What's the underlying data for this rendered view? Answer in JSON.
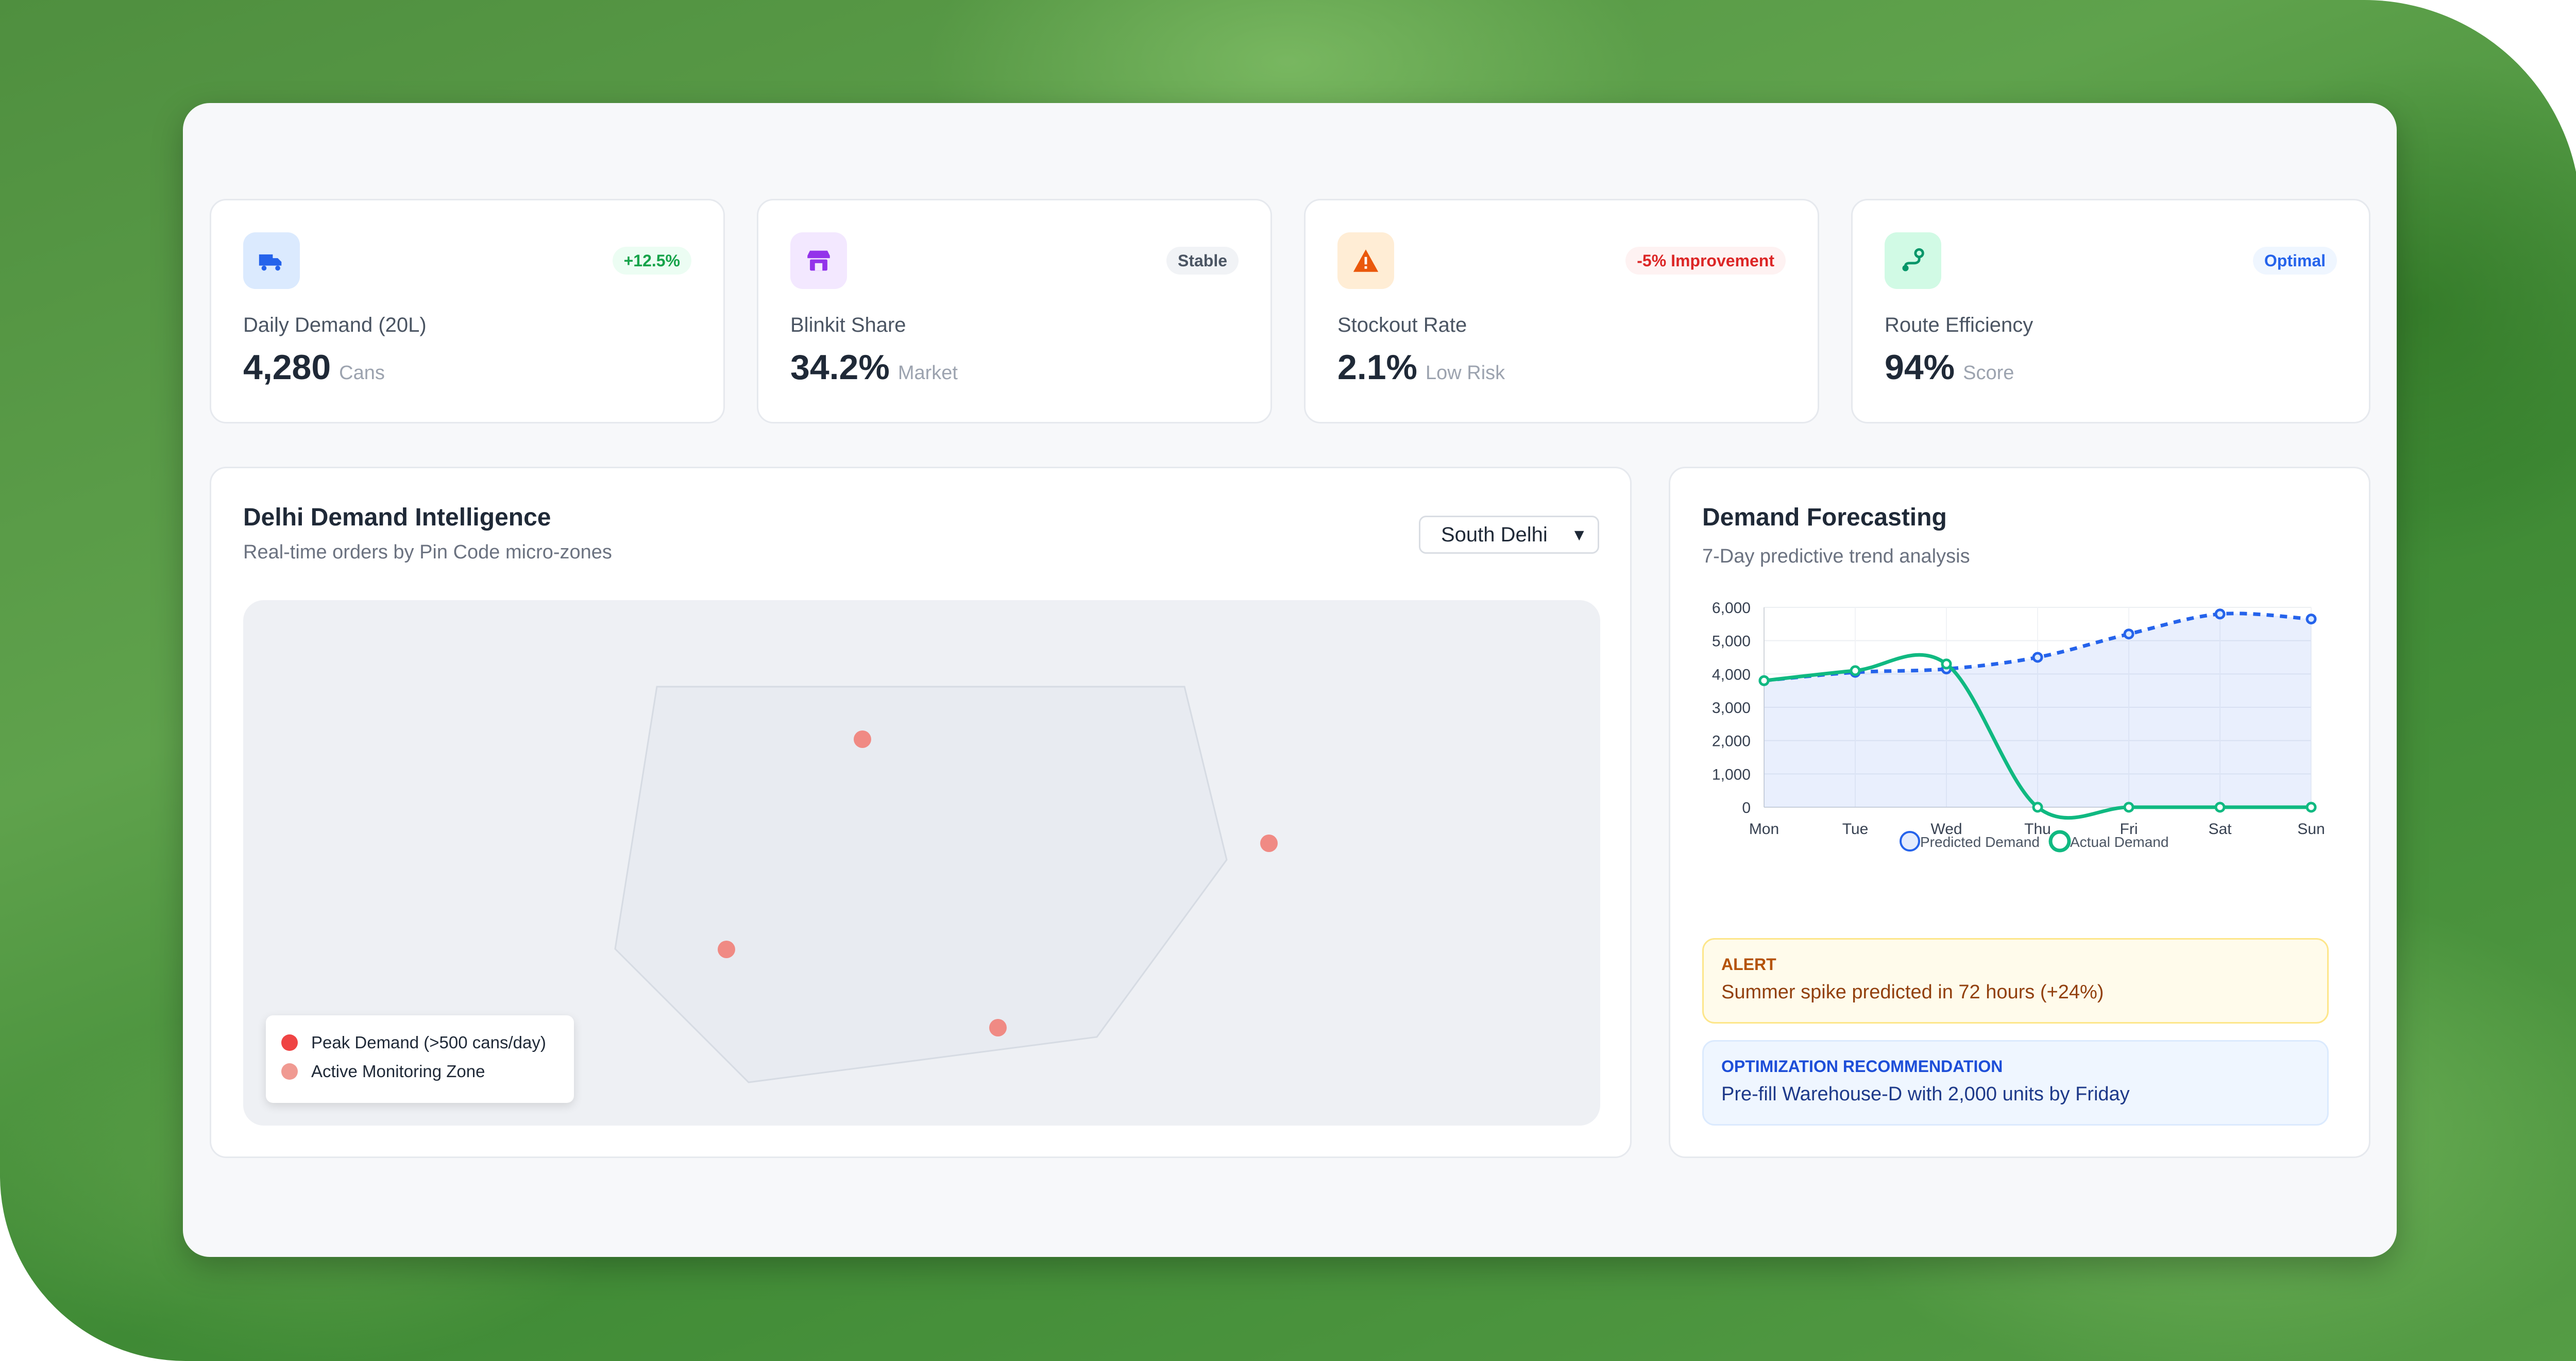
{
  "stats": [
    {
      "label": "Daily Demand (20L)",
      "value": "4,280",
      "unit": "Cans",
      "badge": "+12.5%",
      "icon": "truck-icon"
    },
    {
      "label": "Blinkit Share",
      "value": "34.2%",
      "unit": "Market",
      "badge": "Stable",
      "icon": "store-icon"
    },
    {
      "label": "Stockout Rate",
      "value": "2.1%",
      "unit": "Low Risk",
      "badge": "-5% Improvement",
      "icon": "warning-icon"
    },
    {
      "label": "Route Efficiency",
      "value": "94%",
      "unit": "Score",
      "badge": "Optimal",
      "icon": "route-icon"
    }
  ],
  "colors": {
    "success": "#16a34a",
    "danger": "#dc2626",
    "primary": "#2563eb",
    "purple": "#9333ea",
    "orange": "#ea580c",
    "actual_line": "#10b981",
    "predicted_line": "#2563eb"
  },
  "map": {
    "title": "Delhi Demand Intelligence",
    "subtitle": "Real-time orders by Pin Code micro-zones",
    "zone_select": "South Delhi",
    "legend": [
      {
        "label": "Peak Demand (>500 cans/day)",
        "color": "#ef4444"
      },
      {
        "label": "Active Monitoring Zone",
        "color": "#f09a92"
      }
    ]
  },
  "forecast": {
    "title": "Demand Forecasting",
    "subtitle": "7-Day predictive trend analysis"
  },
  "chart_data": {
    "type": "line",
    "x": [
      "Mon",
      "Tue",
      "Wed",
      "Thu",
      "Fri",
      "Sat",
      "Sun"
    ],
    "ylim": [
      0,
      6000
    ],
    "yticks": [
      "0",
      "1,000",
      "2,000",
      "3,000",
      "4,000",
      "5,000",
      "6,000"
    ],
    "series": [
      {
        "name": "Predicted Demand",
        "values": [
          3800,
          4050,
          4150,
          4500,
          5200,
          5800,
          5650
        ],
        "style": "dashed",
        "fill": true
      },
      {
        "name": "Actual Demand",
        "values": [
          3800,
          4100,
          4300,
          0,
          0,
          0,
          0
        ],
        "style": "solid",
        "fill": false
      }
    ],
    "legend_position": "bottom"
  },
  "alerts": [
    {
      "heading": "ALERT",
      "text": "Summer spike predicted in 72 hours (+24%)"
    },
    {
      "heading": "OPTIMIZATION RECOMMENDATION",
      "text": "Pre-fill Warehouse-D with 2,000 units by Friday"
    }
  ]
}
